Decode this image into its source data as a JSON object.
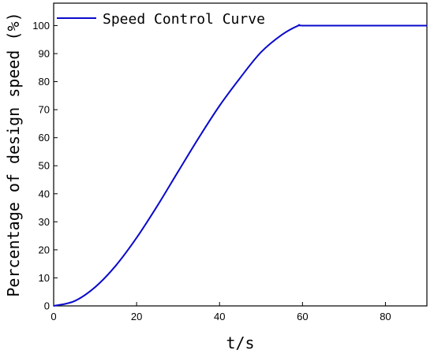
{
  "chart_data": {
    "type": "line",
    "title": "",
    "xlabel": "t/s",
    "ylabel": "Percentage of design speed  (%)",
    "xlim": [
      0,
      90
    ],
    "ylim": [
      0,
      108
    ],
    "xticks": [
      0,
      20,
      40,
      60,
      80
    ],
    "yticks": [
      0,
      10,
      20,
      30,
      40,
      50,
      60,
      70,
      80,
      90,
      100
    ],
    "grid": false,
    "legend": {
      "position": "top-left"
    },
    "series": [
      {
        "name": "Speed Control Curve",
        "color": "#0a0acc",
        "x": [
          0,
          5,
          10,
          15,
          20,
          25,
          30,
          35,
          40,
          45,
          50,
          55,
          59,
          60,
          70,
          80,
          90
        ],
        "y": [
          0,
          1.7,
          6.7,
          14.4,
          24.3,
          35.7,
          47.9,
          60.0,
          71.4,
          81.4,
          90.5,
          96.7,
          100,
          100,
          100,
          100,
          100
        ]
      }
    ]
  }
}
